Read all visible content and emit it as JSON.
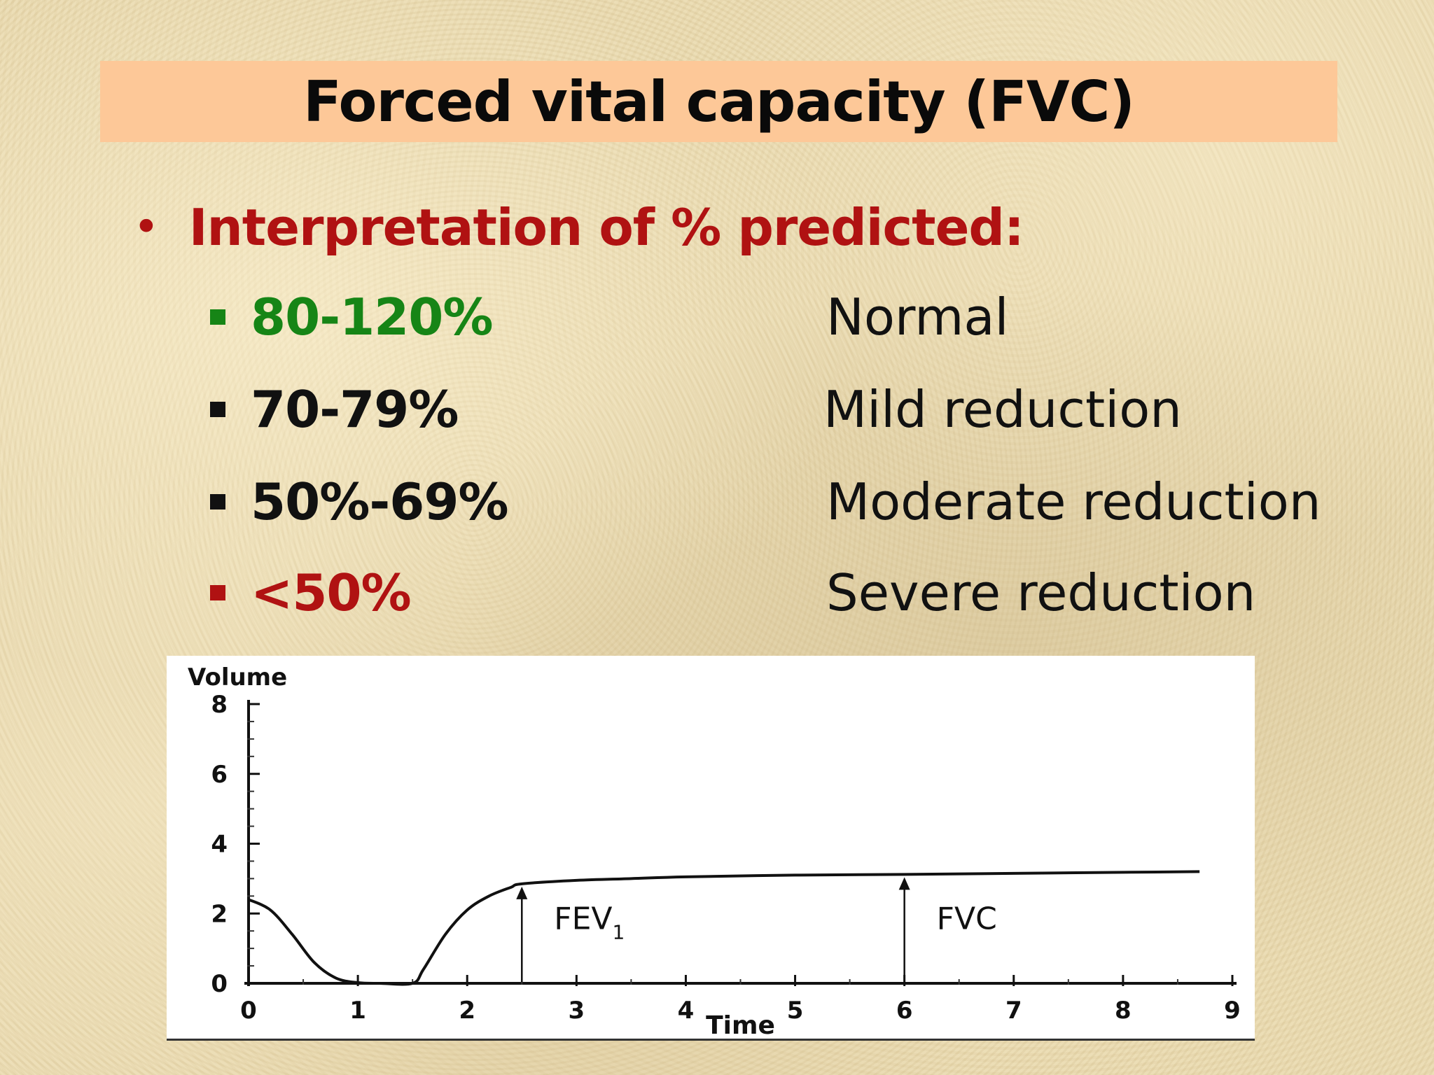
{
  "slide": {
    "title": "Forced vital capacity (FVC)",
    "main_bullet": "Interpretation of % predicted:",
    "colors": {
      "title_band": "#fdc898",
      "red": "#b01212",
      "green": "#168516",
      "black": "#111111"
    },
    "rows": [
      {
        "range": "80-120%",
        "description": "Normal",
        "color": "#168516"
      },
      {
        "range": "70-79%",
        "description": "Mild reduction",
        "color": "#111111"
      },
      {
        "range": "50%-69%",
        "description": "Moderate reduction",
        "color": "#111111"
      },
      {
        "range": "<50%",
        "description": "Severe reduction",
        "color": "#b01212"
      }
    ]
  },
  "chart_data": {
    "type": "line",
    "xlabel": "Time",
    "ylabel": "Volume",
    "xlim": [
      0,
      9
    ],
    "ylim": [
      0,
      8
    ],
    "x_ticks": [
      "0",
      "1",
      "2",
      "3",
      "4",
      "5",
      "6",
      "7",
      "8",
      "9"
    ],
    "y_ticks": [
      "0",
      "2",
      "4",
      "6",
      "8"
    ],
    "grid": false,
    "series": [
      {
        "x": [
          0,
          0.2,
          0.4,
          0.6,
          0.8,
          1.0,
          1.2,
          1.5,
          1.6,
          1.8,
          2.0,
          2.2,
          2.4,
          2.5,
          3.0,
          3.5,
          4.0,
          5.0,
          6.0,
          7.0,
          8.0,
          8.7
        ],
        "values": [
          2.4,
          2.1,
          1.4,
          0.6,
          0.15,
          0.02,
          0,
          0,
          0.4,
          1.4,
          2.1,
          2.5,
          2.75,
          2.85,
          2.95,
          3.0,
          3.05,
          3.1,
          3.12,
          3.15,
          3.18,
          3.2
        ]
      }
    ],
    "annotations": [
      {
        "text": "FEV",
        "subscript": "1",
        "x": 2.5,
        "y": 2.85
      },
      {
        "text": "FVC",
        "x": 6.0,
        "y": 3.12
      }
    ]
  }
}
